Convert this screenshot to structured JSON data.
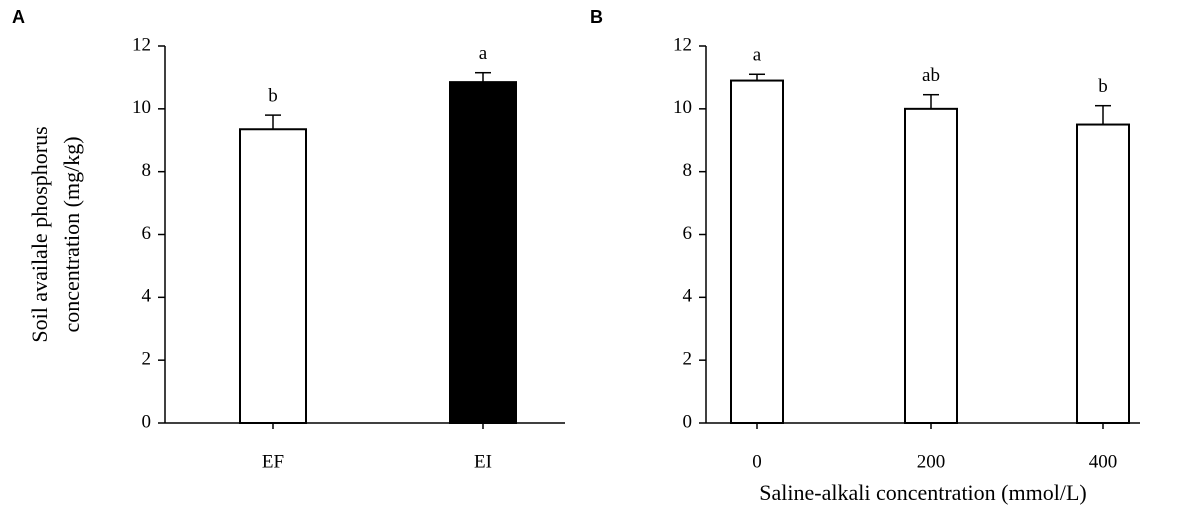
{
  "chart_data": [
    {
      "type": "bar",
      "panel": "A",
      "ylabel": [
        "Soil availale phosphorus",
        "concentration (mg/kg)"
      ],
      "categories": [
        "EF",
        "EI"
      ],
      "values": [
        9.35,
        10.85
      ],
      "errors": [
        0.45,
        0.3
      ],
      "letters": [
        "b",
        "a"
      ],
      "colors": [
        "#ffffff",
        "#000000"
      ],
      "ylim": [
        0,
        12
      ],
      "yticks": [
        0,
        2,
        4,
        6,
        8,
        10,
        12
      ]
    },
    {
      "type": "bar",
      "panel": "B",
      "xlabel": "Saline-alkali concentration (mmol/L)",
      "categories": [
        "0",
        "200",
        "400"
      ],
      "values": [
        10.9,
        10.0,
        9.5
      ],
      "errors": [
        0.2,
        0.45,
        0.6
      ],
      "letters": [
        "a",
        "ab",
        "b"
      ],
      "colors": [
        "#ffffff",
        "#ffffff",
        "#ffffff"
      ],
      "ylim": [
        0,
        12
      ],
      "yticks": [
        0,
        2,
        4,
        6,
        8,
        10,
        12
      ]
    }
  ]
}
